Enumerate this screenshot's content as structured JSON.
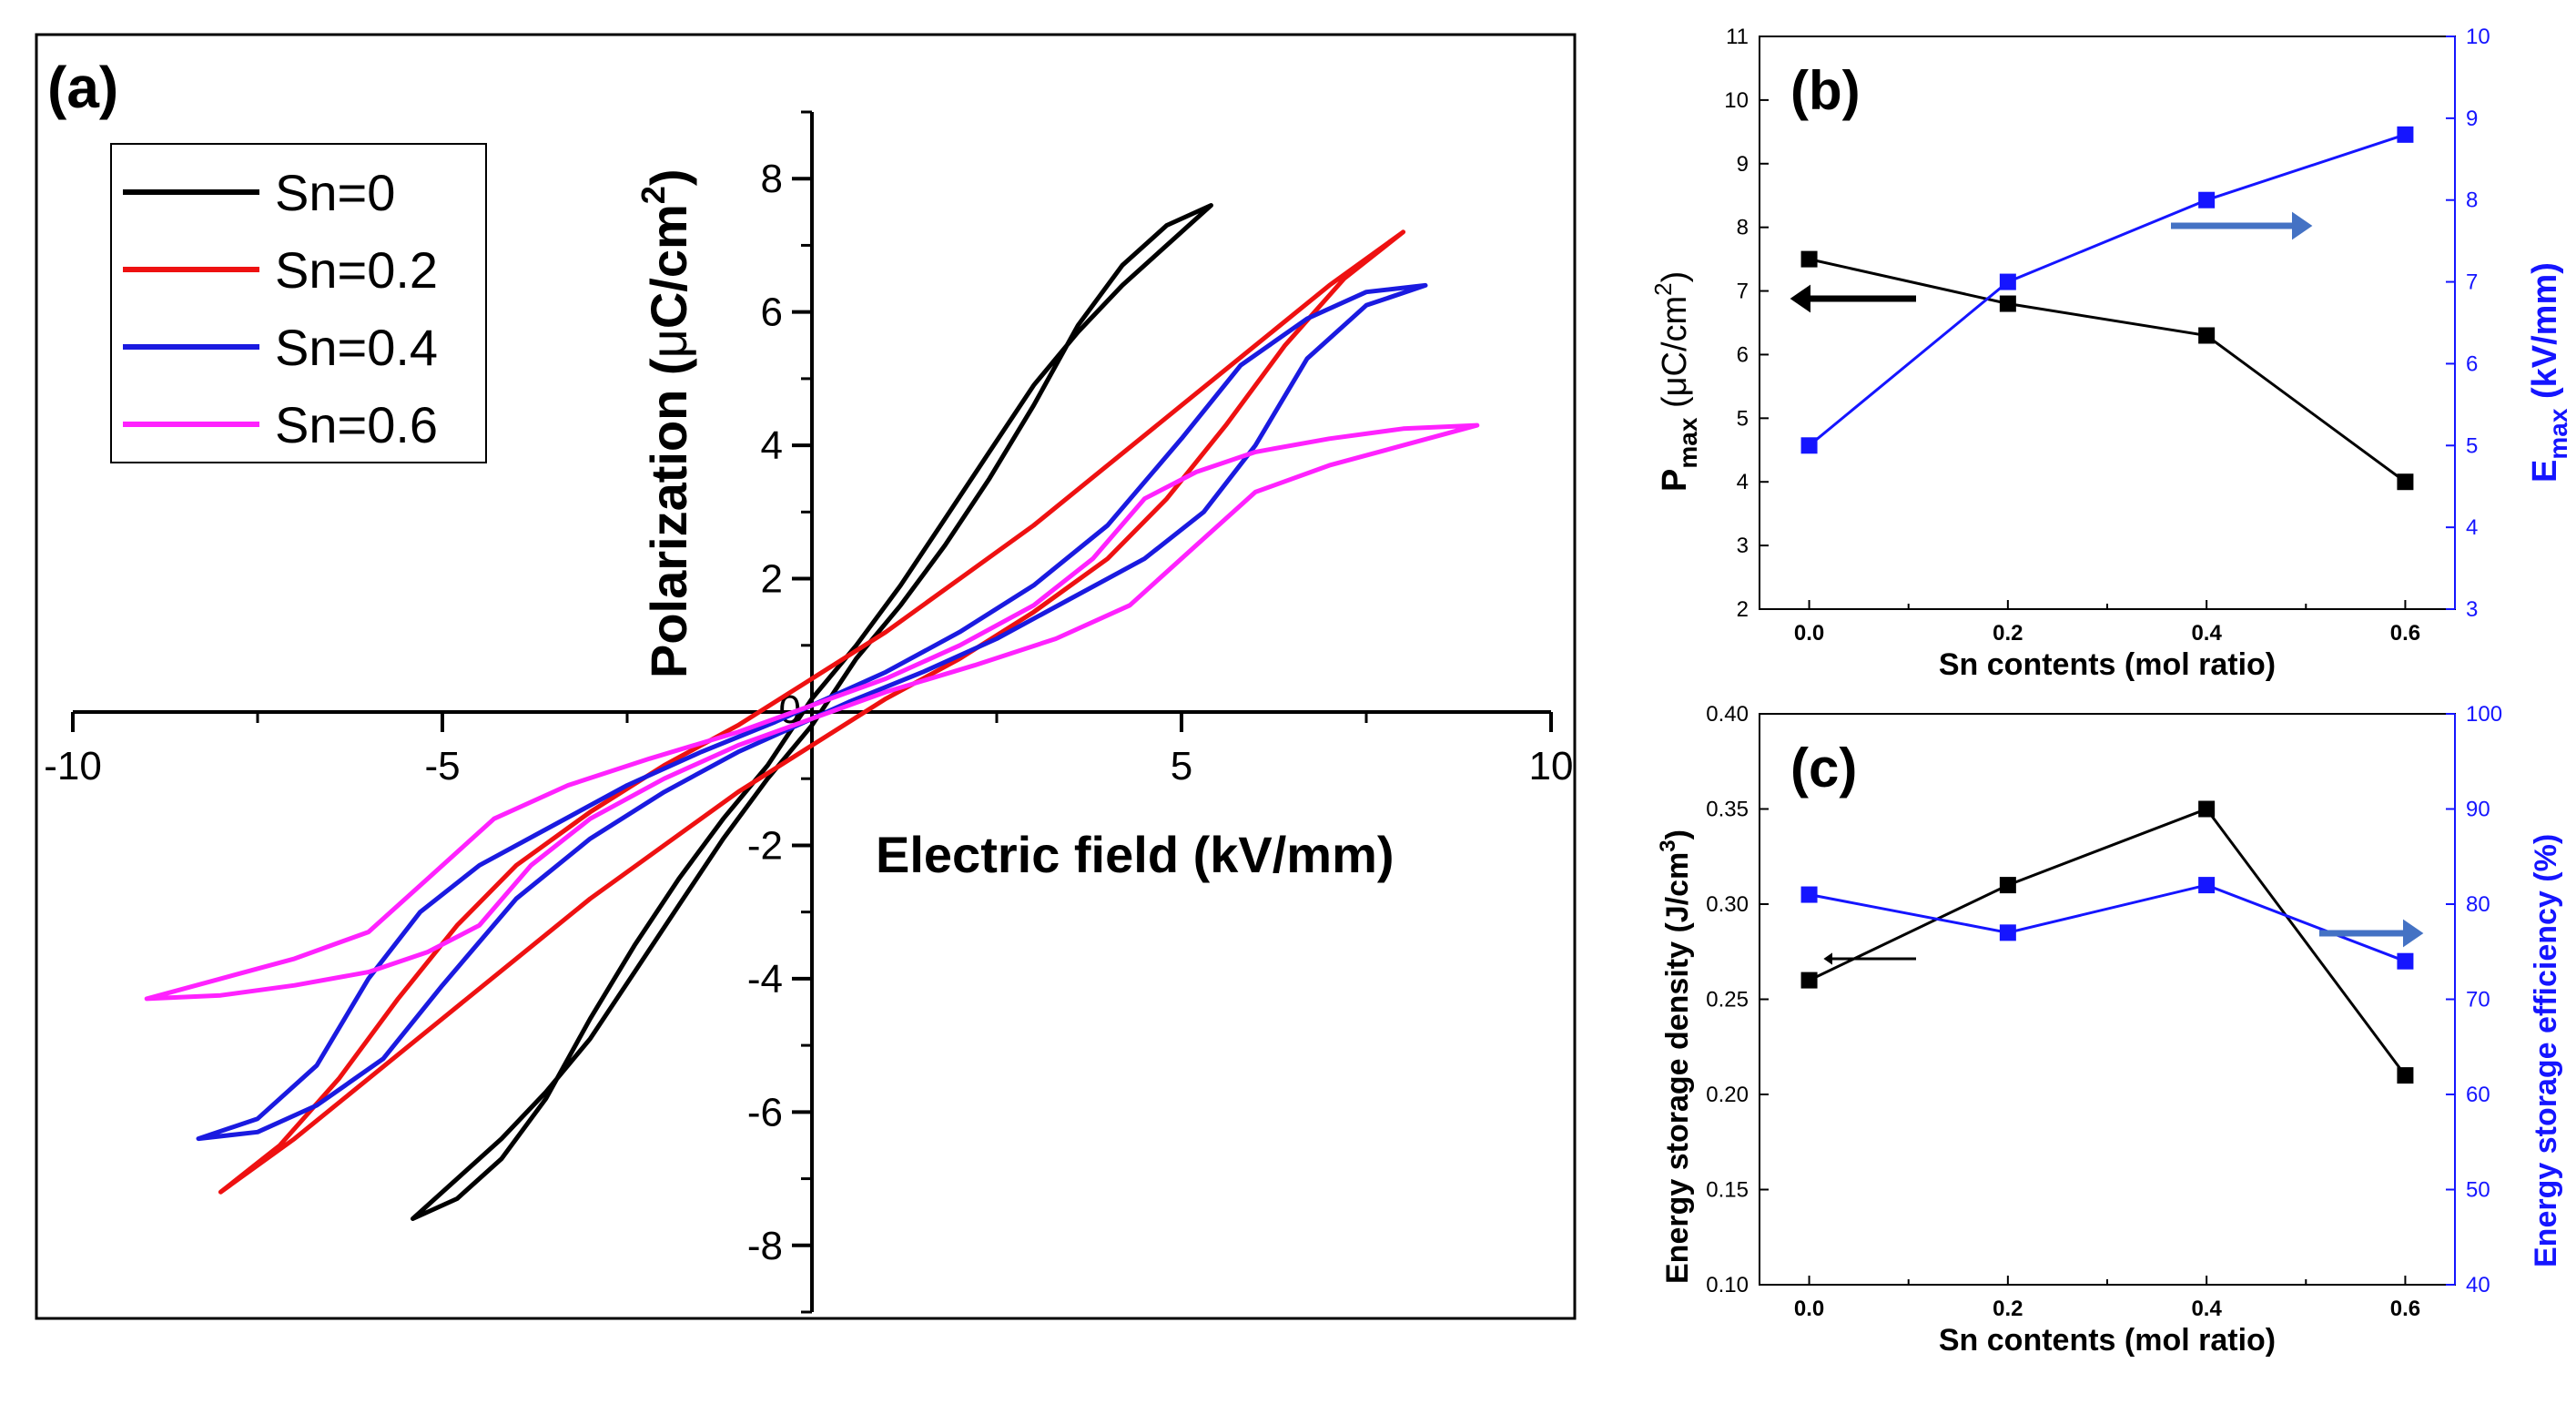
{
  "colors": {
    "black": "#000000",
    "red": "#ee1111",
    "blue": "#1a1ae0",
    "magenta": "#ff22ff",
    "right_axis_blue": "#1515ff",
    "arrow_blue": "#4472c4"
  },
  "chart_data": [
    {
      "id": "a",
      "type": "line",
      "panel_label": "(a)",
      "xlabel": "Electric field (kV/mm)",
      "ylabel_main": "Polarization (",
      "ylabel_mu": "μ",
      "ylabel_unit": "C/cm",
      "ylabel_sup": "2",
      "ylabel_close": ")",
      "xlim": [
        -10,
        10
      ],
      "ylim": [
        -9,
        9
      ],
      "xticks": [
        -10,
        -5,
        0,
        5,
        10
      ],
      "xtick_labels": [
        "-10",
        "-5",
        "0",
        "5",
        "10"
      ],
      "yticks": [
        -8,
        -6,
        -4,
        -2,
        0,
        2,
        4,
        6,
        8
      ],
      "ytick_labels": [
        "-8",
        "-6",
        "-4",
        "-2",
        "0",
        "2",
        "4",
        "6",
        "8"
      ],
      "legend": [
        "Sn=0",
        "Sn=0.2",
        "Sn=0.4",
        "Sn=0.6"
      ],
      "series": [
        {
          "name": "Sn=0",
          "color_key": "black",
          "upper": [
            [
              -5.4,
              -7.6
            ],
            [
              -4.8,
              -7.3
            ],
            [
              -4.2,
              -6.7
            ],
            [
              -3.6,
              -5.8
            ],
            [
              -3.0,
              -4.6
            ],
            [
              -2.4,
              -3.5
            ],
            [
              -1.8,
              -2.5
            ],
            [
              -1.2,
              -1.6
            ],
            [
              -0.6,
              -0.8
            ],
            [
              0,
              0.2
            ],
            [
              0.6,
              1.0
            ],
            [
              1.2,
              1.9
            ],
            [
              1.8,
              2.9
            ],
            [
              2.4,
              3.9
            ],
            [
              3.0,
              4.9
            ],
            [
              3.6,
              5.7
            ],
            [
              4.2,
              6.4
            ],
            [
              4.8,
              7.0
            ],
            [
              5.4,
              7.6
            ]
          ],
          "lower": [
            [
              5.4,
              7.6
            ],
            [
              4.8,
              7.3
            ],
            [
              4.2,
              6.7
            ],
            [
              3.6,
              5.8
            ],
            [
              3.0,
              4.6
            ],
            [
              2.4,
              3.5
            ],
            [
              1.8,
              2.5
            ],
            [
              1.2,
              1.6
            ],
            [
              0.6,
              0.8
            ],
            [
              0,
              -0.2
            ],
            [
              -0.6,
              -1.0
            ],
            [
              -1.2,
              -1.9
            ],
            [
              -1.8,
              -2.9
            ],
            [
              -2.4,
              -3.9
            ],
            [
              -3.0,
              -4.9
            ],
            [
              -3.6,
              -5.7
            ],
            [
              -4.2,
              -6.4
            ],
            [
              -4.8,
              -7.0
            ],
            [
              -5.4,
              -7.6
            ]
          ]
        },
        {
          "name": "Sn=0.2",
          "color_key": "red",
          "upper": [
            [
              -8.0,
              -7.2
            ],
            [
              -7.2,
              -6.5
            ],
            [
              -6.4,
              -5.5
            ],
            [
              -5.6,
              -4.3
            ],
            [
              -4.8,
              -3.2
            ],
            [
              -4.0,
              -2.3
            ],
            [
              -3.0,
              -1.5
            ],
            [
              -2.0,
              -0.8
            ],
            [
              -1.0,
              -0.2
            ],
            [
              0,
              0.5
            ],
            [
              1.0,
              1.2
            ],
            [
              2.0,
              2.0
            ],
            [
              3.0,
              2.8
            ],
            [
              4.0,
              3.7
            ],
            [
              5.0,
              4.6
            ],
            [
              6.0,
              5.5
            ],
            [
              7.0,
              6.4
            ],
            [
              8.0,
              7.2
            ]
          ],
          "lower": [
            [
              8.0,
              7.2
            ],
            [
              7.2,
              6.5
            ],
            [
              6.4,
              5.5
            ],
            [
              5.6,
              4.3
            ],
            [
              4.8,
              3.2
            ],
            [
              4.0,
              2.3
            ],
            [
              3.0,
              1.5
            ],
            [
              2.0,
              0.8
            ],
            [
              1.0,
              0.2
            ],
            [
              0,
              -0.5
            ],
            [
              -1.0,
              -1.2
            ],
            [
              -2.0,
              -2.0
            ],
            [
              -3.0,
              -2.8
            ],
            [
              -4.0,
              -3.7
            ],
            [
              -5.0,
              -4.6
            ],
            [
              -6.0,
              -5.5
            ],
            [
              -7.0,
              -6.4
            ],
            [
              -8.0,
              -7.2
            ]
          ]
        },
        {
          "name": "Sn=0.4",
          "color_key": "blue",
          "upper": [
            [
              -8.3,
              -6.4
            ],
            [
              -7.5,
              -6.1
            ],
            [
              -6.7,
              -5.3
            ],
            [
              -6.0,
              -4.0
            ],
            [
              -5.3,
              -3.0
            ],
            [
              -4.5,
              -2.3
            ],
            [
              -3.5,
              -1.7
            ],
            [
              -2.5,
              -1.1
            ],
            [
              -1.5,
              -0.6
            ],
            [
              -0.5,
              -0.15
            ],
            [
              0,
              0.1
            ],
            [
              1.0,
              0.6
            ],
            [
              2.0,
              1.2
            ],
            [
              3.0,
              1.9
            ],
            [
              4.0,
              2.8
            ],
            [
              5.0,
              4.1
            ],
            [
              5.8,
              5.2
            ],
            [
              6.7,
              5.9
            ],
            [
              7.5,
              6.3
            ],
            [
              8.3,
              6.4
            ]
          ],
          "lower": [
            [
              8.3,
              6.4
            ],
            [
              7.5,
              6.1
            ],
            [
              6.7,
              5.3
            ],
            [
              6.0,
              4.0
            ],
            [
              5.3,
              3.0
            ],
            [
              4.5,
              2.3
            ],
            [
              3.5,
              1.7
            ],
            [
              2.5,
              1.1
            ],
            [
              1.5,
              0.6
            ],
            [
              0.5,
              0.15
            ],
            [
              0,
              -0.1
            ],
            [
              -1.0,
              -0.6
            ],
            [
              -2.0,
              -1.2
            ],
            [
              -3.0,
              -1.9
            ],
            [
              -4.0,
              -2.8
            ],
            [
              -5.0,
              -4.1
            ],
            [
              -5.8,
              -5.2
            ],
            [
              -6.7,
              -5.9
            ],
            [
              -7.5,
              -6.3
            ],
            [
              -8.3,
              -6.4
            ]
          ]
        },
        {
          "name": "Sn=0.6",
          "color_key": "magenta",
          "upper": [
            [
              -9.0,
              -4.3
            ],
            [
              -8.0,
              -4.0
            ],
            [
              -7.0,
              -3.7
            ],
            [
              -6.0,
              -3.3
            ],
            [
              -5.2,
              -2.5
            ],
            [
              -4.3,
              -1.6
            ],
            [
              -3.3,
              -1.1
            ],
            [
              -2.2,
              -0.7
            ],
            [
              -1.0,
              -0.3
            ],
            [
              0,
              0.1
            ],
            [
              1.0,
              0.5
            ],
            [
              2.0,
              1.0
            ],
            [
              3.0,
              1.6
            ],
            [
              3.8,
              2.3
            ],
            [
              4.5,
              3.2
            ],
            [
              5.2,
              3.6
            ],
            [
              6.0,
              3.9
            ],
            [
              7.0,
              4.1
            ],
            [
              8.0,
              4.25
            ],
            [
              9.0,
              4.3
            ]
          ],
          "lower": [
            [
              9.0,
              4.3
            ],
            [
              8.0,
              4.0
            ],
            [
              7.0,
              3.7
            ],
            [
              6.0,
              3.3
            ],
            [
              5.2,
              2.5
            ],
            [
              4.3,
              1.6
            ],
            [
              3.3,
              1.1
            ],
            [
              2.2,
              0.7
            ],
            [
              1.0,
              0.3
            ],
            [
              0,
              -0.1
            ],
            [
              -1.0,
              -0.5
            ],
            [
              -2.0,
              -1.0
            ],
            [
              -3.0,
              -1.6
            ],
            [
              -3.8,
              -2.3
            ],
            [
              -4.5,
              -3.2
            ],
            [
              -5.2,
              -3.6
            ],
            [
              -6.0,
              -3.9
            ],
            [
              -7.0,
              -4.1
            ],
            [
              -8.0,
              -4.25
            ],
            [
              -9.0,
              -4.3
            ]
          ]
        }
      ]
    },
    {
      "id": "b",
      "type": "line",
      "panel_label": "(b)",
      "xlabel": "Sn contents (mol ratio)",
      "ylabel_left_main": "P",
      "ylabel_left_sub": "max",
      "ylabel_left_open": " (",
      "ylabel_left_mu": "μ",
      "ylabel_left_unit": "C/cm",
      "ylabel_left_sup": "2",
      "ylabel_left_close": ")",
      "ylabel_right_main": "E",
      "ylabel_right_sub": "max",
      "ylabel_right_unit": " (kV/mm)",
      "xlim": [
        -0.05,
        0.65
      ],
      "xticks": [
        0.0,
        0.2,
        0.4,
        0.6
      ],
      "xtick_labels": [
        "0.0",
        "0.2",
        "0.4",
        "0.6"
      ],
      "ylim_left": [
        2,
        11
      ],
      "yticks_left": [
        2,
        3,
        4,
        5,
        6,
        7,
        8,
        9,
        10,
        11
      ],
      "ytick_labels_left": [
        "2",
        "3",
        "4",
        "5",
        "6",
        "7",
        "8",
        "9",
        "10",
        "11"
      ],
      "ylim_right": [
        3,
        10
      ],
      "yticks_right": [
        3,
        4,
        5,
        6,
        7,
        8,
        9,
        10
      ],
      "ytick_labels_right": [
        "3",
        "4",
        "5",
        "6",
        "7",
        "8",
        "9",
        "10"
      ],
      "x": [
        0.0,
        0.2,
        0.4,
        0.6
      ],
      "series": [
        {
          "name": "Pmax",
          "axis": "left",
          "color_key": "black",
          "values": [
            7.5,
            6.8,
            6.3,
            4.0
          ]
        },
        {
          "name": "Emax",
          "axis": "right",
          "color_key": "right_axis_blue",
          "values": [
            5.0,
            7.0,
            8.0,
            8.8
          ]
        }
      ]
    },
    {
      "id": "c",
      "type": "line",
      "panel_label": "(c)",
      "xlabel": "Sn contents (mol ratio)",
      "ylabel_left_main": "Energy storage density (J/cm",
      "ylabel_left_sup": "3",
      "ylabel_left_close": ")",
      "ylabel_right": "Energy storage efficiency (%)",
      "xlim": [
        -0.05,
        0.65
      ],
      "xticks": [
        0.0,
        0.2,
        0.4,
        0.6
      ],
      "xtick_labels": [
        "0.0",
        "0.2",
        "0.4",
        "0.6"
      ],
      "ylim_left": [
        0.1,
        0.4
      ],
      "yticks_left": [
        0.1,
        0.15,
        0.2,
        0.25,
        0.3,
        0.35,
        0.4
      ],
      "ytick_labels_left": [
        "0.10",
        "0.15",
        "0.20",
        "0.25",
        "0.30",
        "0.35",
        "0.40"
      ],
      "ylim_right": [
        40,
        100
      ],
      "yticks_right": [
        40,
        50,
        60,
        70,
        80,
        90,
        100
      ],
      "ytick_labels_right": [
        "40",
        "50",
        "60",
        "70",
        "80",
        "90",
        "100"
      ],
      "x": [
        0.0,
        0.2,
        0.4,
        0.6
      ],
      "series": [
        {
          "name": "Energy storage density",
          "axis": "left",
          "color_key": "black",
          "values": [
            0.26,
            0.31,
            0.35,
            0.21
          ]
        },
        {
          "name": "Energy storage efficiency",
          "axis": "right",
          "color_key": "right_axis_blue",
          "values": [
            81,
            77,
            82,
            74
          ]
        }
      ]
    }
  ]
}
